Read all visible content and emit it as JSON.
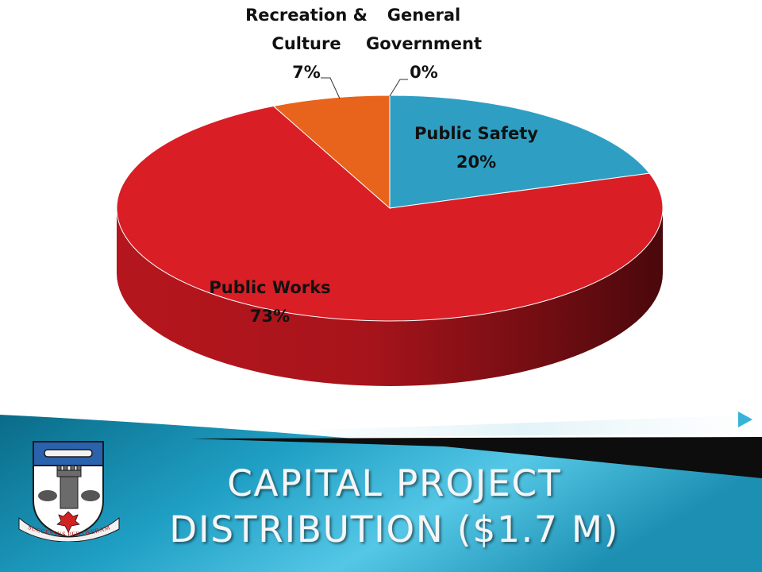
{
  "slide": {
    "title_lines": [
      "CAPITAL PROJECT",
      "DISTRIBUTION ($1.7 M)"
    ]
  },
  "crest": {
    "motto": "SUCCESSUS PER OPERAM"
  },
  "colors": {
    "public_safety": "#2e9fc3",
    "public_works": "#d91e26",
    "recreation_culture": "#e8641c",
    "general_government": "#7a8fa3",
    "band_dark": "#0a6b88",
    "band_light": "#55c7e6",
    "bullet": "#35b3d8"
  },
  "chart_data": {
    "type": "pie",
    "style": "3d",
    "slices": [
      {
        "name": "Public Safety",
        "value": 20,
        "label_lines": [
          "Public Safety",
          "20%"
        ]
      },
      {
        "name": "Public Works",
        "value": 73,
        "label_lines": [
          "Public Works",
          "73%"
        ]
      },
      {
        "name": "Recreation & Culture",
        "value": 7,
        "label_lines": [
          "Recreation &",
          "Culture",
          "7%"
        ]
      },
      {
        "name": "General Government",
        "value": 0,
        "label_lines": [
          "General",
          "Government",
          "0%"
        ]
      }
    ]
  }
}
